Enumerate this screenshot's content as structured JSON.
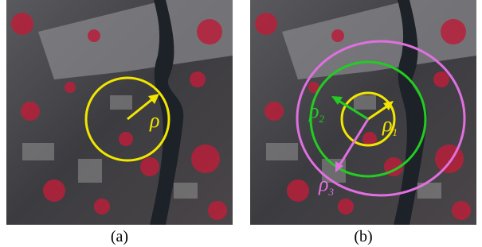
{
  "panels": [
    {
      "caption": "(a)",
      "labels": [
        {
          "symbol": "ρ",
          "color": "#f2e600"
        }
      ]
    },
    {
      "caption": "(b)",
      "labels": [
        {
          "symbol": "ρ",
          "subscript": "1",
          "color": "#f2e600"
        },
        {
          "symbol": "ρ",
          "subscript": "2",
          "color": "#22cc22"
        },
        {
          "symbol": "ρ",
          "subscript": "3",
          "color": "#e070e0"
        }
      ]
    }
  ]
}
